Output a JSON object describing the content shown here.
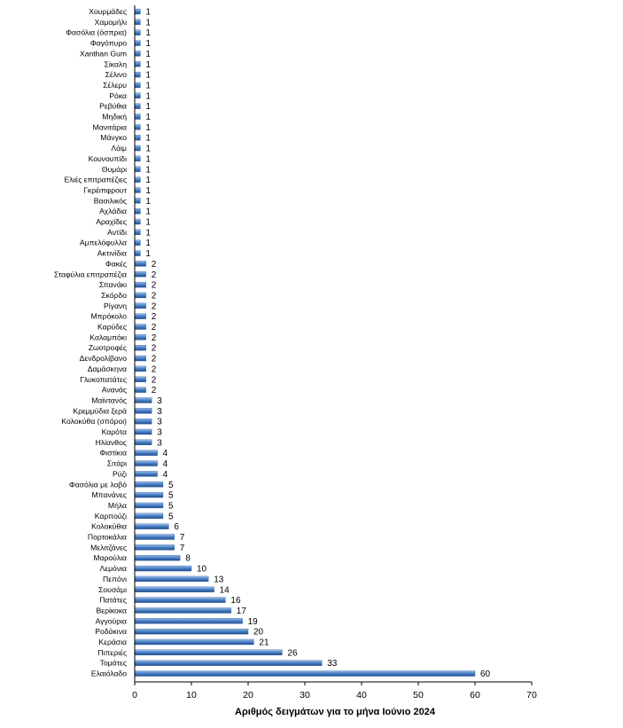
{
  "chart_data": {
    "type": "bar",
    "orientation": "horizontal",
    "title": "",
    "xlabel": "Αριθμός δειγμάτων για το μήνα Ιούνιο 2024",
    "ylabel": "",
    "xlim": [
      0,
      70
    ],
    "xticks": [
      0,
      10,
      20,
      30,
      40,
      50,
      60,
      70
    ],
    "grid": false,
    "legend": "none",
    "bar_color": "#3a6fb5",
    "categories": [
      "Χουρμάδες",
      "Χαμομήλι",
      "Φασόλια (όσπρια)",
      "Φαγόπυρο",
      "Xanthan Gum",
      "Σίκαλη",
      "Σέλινο",
      "Σέλερυ",
      "Ρόκα",
      "Ρεβύθια",
      "Μηδική",
      "Μανιτάρια",
      "Μάνγκο",
      "Λάιμ",
      "Κουνουπίδι",
      "Θυμάρι",
      "Ελιές επιτραπέζιες",
      "Γκρέιπφρουτ",
      "Βασιλικός",
      "Αχλάδια",
      "Αραχίδες",
      "Αντίδι",
      "Αμπελόφυλλα",
      "Ακτινίδια",
      "Φακές",
      "Σταφύλια επιτραπέζια",
      "Σπανάκι",
      "Σκόρδο",
      "Ρίγανη",
      "Μπρόκολο",
      "Καρύδες",
      "Καλαμπόκι",
      "Ζωοτροφές",
      "Δενδρολίβανο",
      "Δαμάσκηνα",
      "Γλυκοπατάτες",
      "Ανανάς",
      "Μαϊντανός",
      "Κρεμμύδια ξερά",
      "Κολοκύθα (σπόροι)",
      "Καρότα",
      "Ηλίανθος",
      "Φιστίκια",
      "Σιτάρι",
      "Ρύζι",
      "Φασόλια με λοβό",
      "Μπανάνες",
      "Μήλα",
      "Καρπούζι",
      "Κολοκύθια",
      "Πορτοκάλια",
      "Μελιτζάνες",
      "Μαρούλια",
      "Λεμόνια",
      "Πεπόνι",
      "Σουσάμι",
      "Πατάτες",
      "Βερίκοκα",
      "Αγγούρια",
      "Ροδάκινα",
      "Κεράσια",
      "Πιπεριές",
      "Τομάτες",
      "Ελαιόλαδο"
    ],
    "values": [
      1,
      1,
      1,
      1,
      1,
      1,
      1,
      1,
      1,
      1,
      1,
      1,
      1,
      1,
      1,
      1,
      1,
      1,
      1,
      1,
      1,
      1,
      1,
      1,
      2,
      2,
      2,
      2,
      2,
      2,
      2,
      2,
      2,
      2,
      2,
      2,
      2,
      3,
      3,
      3,
      3,
      3,
      4,
      4,
      4,
      5,
      5,
      5,
      5,
      6,
      7,
      7,
      8,
      10,
      13,
      14,
      16,
      17,
      19,
      20,
      21,
      26,
      33,
      60
    ]
  }
}
